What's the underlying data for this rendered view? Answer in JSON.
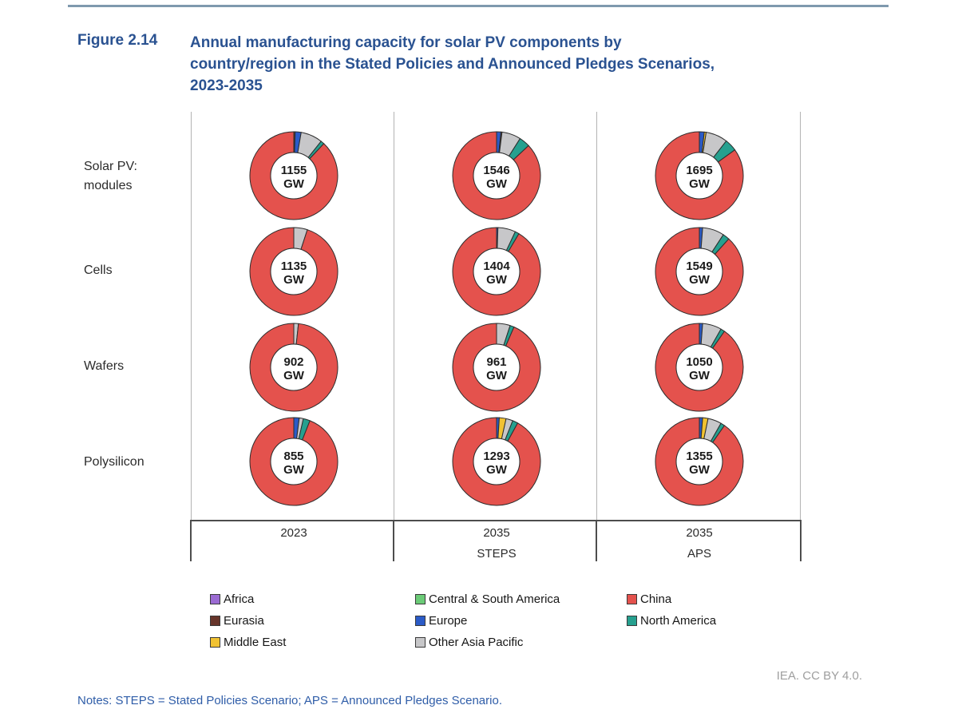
{
  "header": {
    "figure_label": "Figure 2.14",
    "title_lines": [
      "Annual manufacturing capacity for solar PV components by",
      "country/region in the Stated Policies and Announced Pledges Scenarios,",
      "2023-2035"
    ]
  },
  "chart_data": {
    "type": "pie",
    "subtype": "donut-grid",
    "unit": "GW",
    "title": "Annual manufacturing capacity for solar PV components by country/region in the Stated Policies and Announced Pledges Scenarios, 2023-2035",
    "rows": [
      {
        "key": "modules",
        "label_lines": [
          "Solar PV:",
          "modules"
        ]
      },
      {
        "key": "cells",
        "label_lines": [
          "Cells"
        ]
      },
      {
        "key": "wafers",
        "label_lines": [
          "Wafers"
        ]
      },
      {
        "key": "polysilicon",
        "label_lines": [
          "Polysilicon"
        ]
      }
    ],
    "columns": [
      {
        "year": "2023",
        "scenario": ""
      },
      {
        "year": "2035",
        "scenario": "STEPS"
      },
      {
        "year": "2035",
        "scenario": "APS"
      }
    ],
    "region_colors": {
      "Africa": "#9b6bd3",
      "Central & South America": "#6bcb77",
      "China": "#e4524d",
      "Eurasia": "#67352a",
      "Europe": "#2b5bc7",
      "North America": "#26a08f",
      "Middle East": "#f1c232",
      "Other Asia Pacific": "#c7c7c9"
    },
    "legend_order": [
      "Africa",
      "Central & South America",
      "China",
      "Eurasia",
      "Europe",
      "North America",
      "Middle East",
      "Other Asia Pacific"
    ],
    "legend_position": "bottom",
    "donuts": [
      {
        "row": 0,
        "col": 0,
        "value": "1155",
        "segments": [
          {
            "region": "Eurasia",
            "pct": 0.5
          },
          {
            "region": "Europe",
            "pct": 2.2
          },
          {
            "region": "Other Asia Pacific",
            "pct": 8.0
          },
          {
            "region": "North America",
            "pct": 1.3
          },
          {
            "region": "China",
            "pct": 88.0
          }
        ]
      },
      {
        "row": 0,
        "col": 1,
        "value": "1546",
        "segments": [
          {
            "region": "Europe",
            "pct": 1.6
          },
          {
            "region": "Eurasia",
            "pct": 0.4
          },
          {
            "region": "Other Asia Pacific",
            "pct": 7.0
          },
          {
            "region": "North America",
            "pct": 4.0
          },
          {
            "region": "China",
            "pct": 87.0
          }
        ]
      },
      {
        "row": 0,
        "col": 2,
        "value": "1695",
        "segments": [
          {
            "region": "Europe",
            "pct": 1.8
          },
          {
            "region": "Middle East",
            "pct": 0.7
          },
          {
            "region": "Other Asia Pacific",
            "pct": 8.0
          },
          {
            "region": "North America",
            "pct": 4.5
          },
          {
            "region": "China",
            "pct": 85.0
          }
        ]
      },
      {
        "row": 1,
        "col": 0,
        "value": "1135",
        "segments": [
          {
            "region": "Other Asia Pacific",
            "pct": 5.0
          },
          {
            "region": "China",
            "pct": 95.0
          }
        ]
      },
      {
        "row": 1,
        "col": 1,
        "value": "1404",
        "segments": [
          {
            "region": "Europe",
            "pct": 0.5
          },
          {
            "region": "Other Asia Pacific",
            "pct": 6.5
          },
          {
            "region": "North America",
            "pct": 1.5
          },
          {
            "region": "China",
            "pct": 91.5
          }
        ]
      },
      {
        "row": 1,
        "col": 2,
        "value": "1549",
        "segments": [
          {
            "region": "Europe",
            "pct": 1.2
          },
          {
            "region": "Other Asia Pacific",
            "pct": 8.0
          },
          {
            "region": "North America",
            "pct": 2.5
          },
          {
            "region": "China",
            "pct": 88.3
          }
        ]
      },
      {
        "row": 2,
        "col": 0,
        "value": "902",
        "segments": [
          {
            "region": "Other Asia Pacific",
            "pct": 1.7
          },
          {
            "region": "China",
            "pct": 98.3
          }
        ]
      },
      {
        "row": 2,
        "col": 1,
        "value": "961",
        "segments": [
          {
            "region": "Other Asia Pacific",
            "pct": 5.0
          },
          {
            "region": "North America",
            "pct": 1.5
          },
          {
            "region": "China",
            "pct": 93.5
          }
        ]
      },
      {
        "row": 2,
        "col": 2,
        "value": "1050",
        "segments": [
          {
            "region": "Europe",
            "pct": 1.2
          },
          {
            "region": "Other Asia Pacific",
            "pct": 7.0
          },
          {
            "region": "North America",
            "pct": 1.5
          },
          {
            "region": "China",
            "pct": 90.3
          }
        ]
      },
      {
        "row": 3,
        "col": 0,
        "value": "855",
        "segments": [
          {
            "region": "Europe",
            "pct": 2.0
          },
          {
            "region": "Other Asia Pacific",
            "pct": 1.5
          },
          {
            "region": "North America",
            "pct": 2.5
          },
          {
            "region": "China",
            "pct": 94.0
          }
        ]
      },
      {
        "row": 3,
        "col": 1,
        "value": "1293",
        "segments": [
          {
            "region": "Europe",
            "pct": 1.0
          },
          {
            "region": "Middle East",
            "pct": 2.5
          },
          {
            "region": "Other Asia Pacific",
            "pct": 2.5
          },
          {
            "region": "North America",
            "pct": 2.0
          },
          {
            "region": "China",
            "pct": 92.0
          }
        ]
      },
      {
        "row": 3,
        "col": 2,
        "value": "1355",
        "segments": [
          {
            "region": "Europe",
            "pct": 1.2
          },
          {
            "region": "Middle East",
            "pct": 2.0
          },
          {
            "region": "Other Asia Pacific",
            "pct": 5.0
          },
          {
            "region": "North America",
            "pct": 1.5
          },
          {
            "region": "China",
            "pct": 90.3
          }
        ]
      }
    ]
  },
  "footer": {
    "attribution": "IEA. CC BY 4.0.",
    "notes": "Notes: STEPS = Stated Policies Scenario; APS = Announced Pledges Scenario."
  }
}
